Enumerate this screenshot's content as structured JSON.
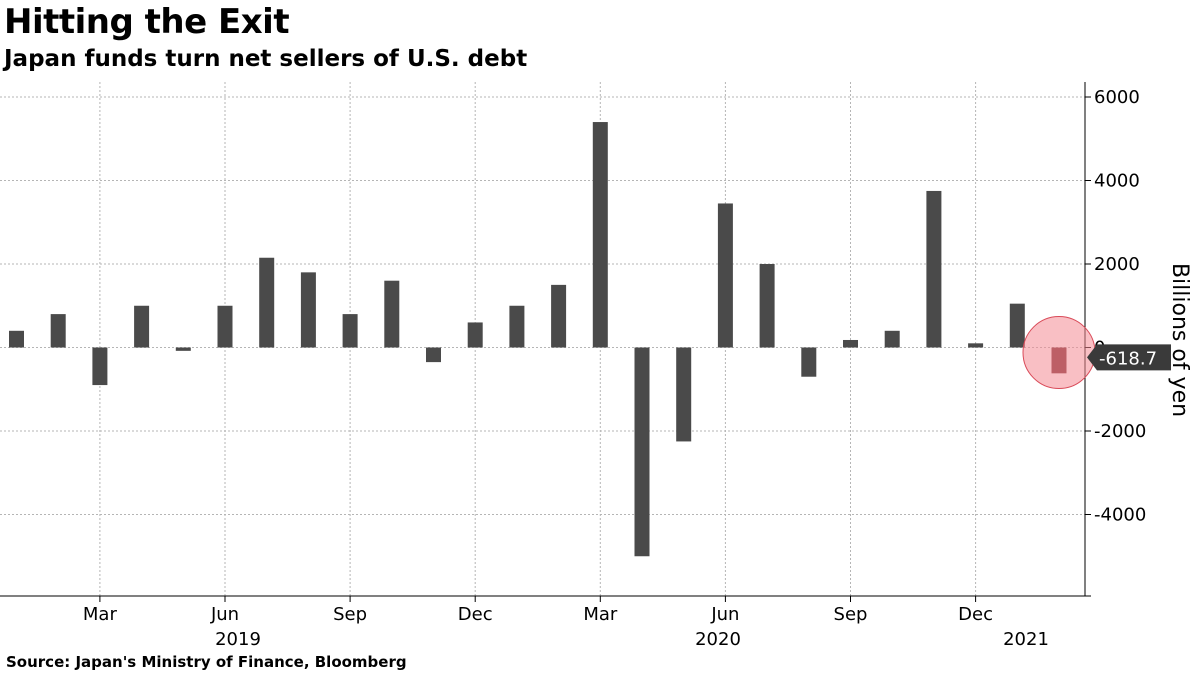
{
  "title": "Hitting the Exit",
  "subtitle": "Japan funds turn net sellers of U.S. debt",
  "source": "Source: Japan's Ministry of Finance, Bloomberg",
  "colors": {
    "bar": "#4a4a4a",
    "highlight_bar": "#7a2a30",
    "highlight_circle": "#f48a93",
    "grid": "#b5b5b5",
    "callout_bg": "#3a3a3a"
  },
  "chart_data": {
    "type": "bar",
    "title": "Hitting the Exit",
    "subtitle": "Japan funds turn net sellers of U.S. debt",
    "ylabel": "Billions of yen",
    "xlabel": "",
    "ylim": [
      -5900,
      6300
    ],
    "yticks": [
      6000,
      4000,
      2000,
      0,
      -2000,
      -4000
    ],
    "grid": true,
    "categories": [
      "2019-01",
      "2019-02",
      "2019-03",
      "2019-04",
      "2019-05",
      "2019-06",
      "2019-07",
      "2019-08",
      "2019-09",
      "2019-10",
      "2019-11",
      "2019-12",
      "2020-01",
      "2020-02",
      "2020-03",
      "2020-04",
      "2020-05",
      "2020-06",
      "2020-07",
      "2020-08",
      "2020-09",
      "2020-10",
      "2020-11",
      "2020-12",
      "2021-01",
      "2021-02"
    ],
    "values": [
      400,
      800,
      -900,
      1000,
      -80,
      1000,
      2150,
      1800,
      800,
      1600,
      -350,
      600,
      1000,
      1500,
      5400,
      -5000,
      -2250,
      3450,
      2000,
      -700,
      180,
      400,
      3750,
      100,
      1050,
      -618.7
    ],
    "month_ticks": [
      "Mar",
      "Jun",
      "Sep",
      "Dec",
      "Mar",
      "Jun",
      "Sep",
      "Dec"
    ],
    "year_labels": [
      "2019",
      "2020",
      "2021"
    ],
    "highlight": {
      "category": "2021-02",
      "label": "-618.7"
    }
  }
}
